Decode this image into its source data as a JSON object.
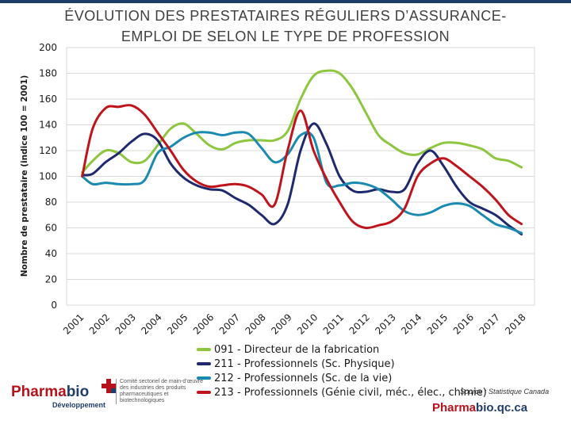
{
  "title": {
    "line1": "ÉVOLUTION DES PRESTATAIRES RÉGULIERS D’ASSURANCE-",
    "line2": "EMPLOI DE SELON LE TYPE DE PROFESSION"
  },
  "source": "Source : Statistique Canada",
  "footer_brand": {
    "part1": "Pharma",
    "part2": "bio",
    "part3": ".qc.ca"
  },
  "logo": {
    "word_part1": "Pharma",
    "word_part2": "bio",
    "sub": "Développement",
    "committee": "Comité sectoriel de main-d’œuvre des industries des produits pharmaceutiques et biotechnologiques"
  },
  "colors": {
    "s091": "#8dc63f",
    "s211": "#1f2a6e",
    "s212": "#1b8ab0",
    "s213": "#c0141c",
    "grid": "#d9d9d9",
    "axis_text": "#1a1a1a"
  },
  "chart_data": {
    "type": "line",
    "title": "ÉVOLUTION DES PRESTATAIRES RÉGULIERS D’ASSURANCE-EMPLOI DE SELON LE TYPE DE PROFESSION",
    "xlabel": "",
    "ylabel": "Nombre de prestataire (indice 100 = 2001)",
    "ylim": [
      0,
      200
    ],
    "yticks": [
      "0",
      "20",
      "40",
      "60",
      "80",
      "100",
      "120",
      "140",
      "160",
      "180",
      "200"
    ],
    "xlim": [
      2000.5,
      2018.5
    ],
    "xticks": [
      "2001",
      "2002",
      "2003",
      "2004",
      "2005",
      "2006",
      "2007",
      "2008",
      "2009",
      "2010",
      "2011",
      "2012",
      "2013",
      "2014",
      "2015",
      "2016",
      "2017",
      "2018"
    ],
    "grid": true,
    "legend_position": "bottom",
    "series": [
      {
        "name": "091 - Directeur de la fabrication",
        "color_key": "s091",
        "x": [
          2001.1,
          2001.5,
          2002.0,
          2002.5,
          2003.0,
          2003.5,
          2004.0,
          2004.5,
          2005.0,
          2005.5,
          2006.0,
          2006.5,
          2007.0,
          2007.5,
          2008.0,
          2008.5,
          2009.0,
          2009.5,
          2010.0,
          2010.5,
          2011.0,
          2011.5,
          2012.0,
          2012.5,
          2013.0,
          2013.5,
          2014.0,
          2014.5,
          2015.0,
          2015.5,
          2016.0,
          2016.5,
          2017.0,
          2017.5,
          2018.0
        ],
        "values": [
          103,
          112,
          120,
          118,
          111,
          112,
          124,
          137,
          141,
          133,
          124,
          121,
          126,
          128,
          128,
          128,
          135,
          160,
          178,
          182,
          180,
          168,
          150,
          132,
          124,
          118,
          117,
          122,
          126,
          126,
          124,
          121,
          114,
          112,
          107
        ]
      },
      {
        "name": "211 - Professionnels (Sc. Physique)",
        "color_key": "s211",
        "x": [
          2001.1,
          2001.5,
          2002.0,
          2002.5,
          2003.0,
          2003.5,
          2004.0,
          2004.5,
          2005.0,
          2005.5,
          2006.0,
          2006.5,
          2007.0,
          2007.5,
          2008.0,
          2008.5,
          2009.0,
          2009.5,
          2010.0,
          2010.5,
          2011.0,
          2011.5,
          2012.0,
          2012.5,
          2013.0,
          2013.5,
          2014.0,
          2014.5,
          2015.0,
          2015.5,
          2016.0,
          2016.5,
          2017.0,
          2017.5,
          2018.0
        ],
        "values": [
          101,
          102,
          111,
          118,
          127,
          133,
          128,
          110,
          99,
          93,
          90,
          89,
          83,
          78,
          70,
          63,
          78,
          120,
          141,
          125,
          100,
          89,
          88,
          90,
          88,
          90,
          110,
          120,
          108,
          92,
          80,
          75,
          70,
          62,
          55
        ]
      },
      {
        "name": "212 - Professionnels (Sc. de la vie)",
        "color_key": "s212",
        "x": [
          2001.1,
          2001.5,
          2002.0,
          2002.5,
          2003.0,
          2003.5,
          2004.0,
          2004.5,
          2005.0,
          2005.5,
          2006.0,
          2006.5,
          2007.0,
          2007.5,
          2008.0,
          2008.5,
          2009.0,
          2009.5,
          2010.0,
          2010.5,
          2011.0,
          2011.5,
          2012.0,
          2012.5,
          2013.0,
          2013.5,
          2014.0,
          2014.5,
          2015.0,
          2015.5,
          2016.0,
          2016.5,
          2017.0,
          2017.5,
          2018.0
        ],
        "values": [
          100,
          94,
          95,
          94,
          94,
          97,
          118,
          123,
          130,
          134,
          134,
          132,
          134,
          133,
          122,
          111,
          117,
          132,
          130,
          95,
          93,
          95,
          94,
          90,
          82,
          73,
          70,
          72,
          77,
          79,
          77,
          70,
          63,
          60,
          56
        ]
      },
      {
        "name": "213 - Professionnels (Génie civil, méc., élec., chimie)",
        "color_key": "s213",
        "x": [
          2001.1,
          2001.5,
          2002.0,
          2002.5,
          2003.0,
          2003.5,
          2004.0,
          2004.5,
          2005.0,
          2005.5,
          2006.0,
          2006.5,
          2007.0,
          2007.5,
          2008.0,
          2008.5,
          2009.0,
          2009.5,
          2010.0,
          2010.5,
          2011.0,
          2011.5,
          2012.0,
          2012.5,
          2013.0,
          2013.5,
          2014.0,
          2014.5,
          2015.0,
          2015.5,
          2016.0,
          2016.5,
          2017.0,
          2017.5,
          2018.0
        ],
        "values": [
          100,
          137,
          153,
          154,
          155,
          148,
          134,
          120,
          105,
          96,
          92,
          93,
          94,
          92,
          86,
          78,
          120,
          151,
          120,
          98,
          80,
          65,
          60,
          62,
          65,
          75,
          100,
          110,
          114,
          108,
          100,
          92,
          82,
          70,
          63
        ]
      }
    ]
  }
}
